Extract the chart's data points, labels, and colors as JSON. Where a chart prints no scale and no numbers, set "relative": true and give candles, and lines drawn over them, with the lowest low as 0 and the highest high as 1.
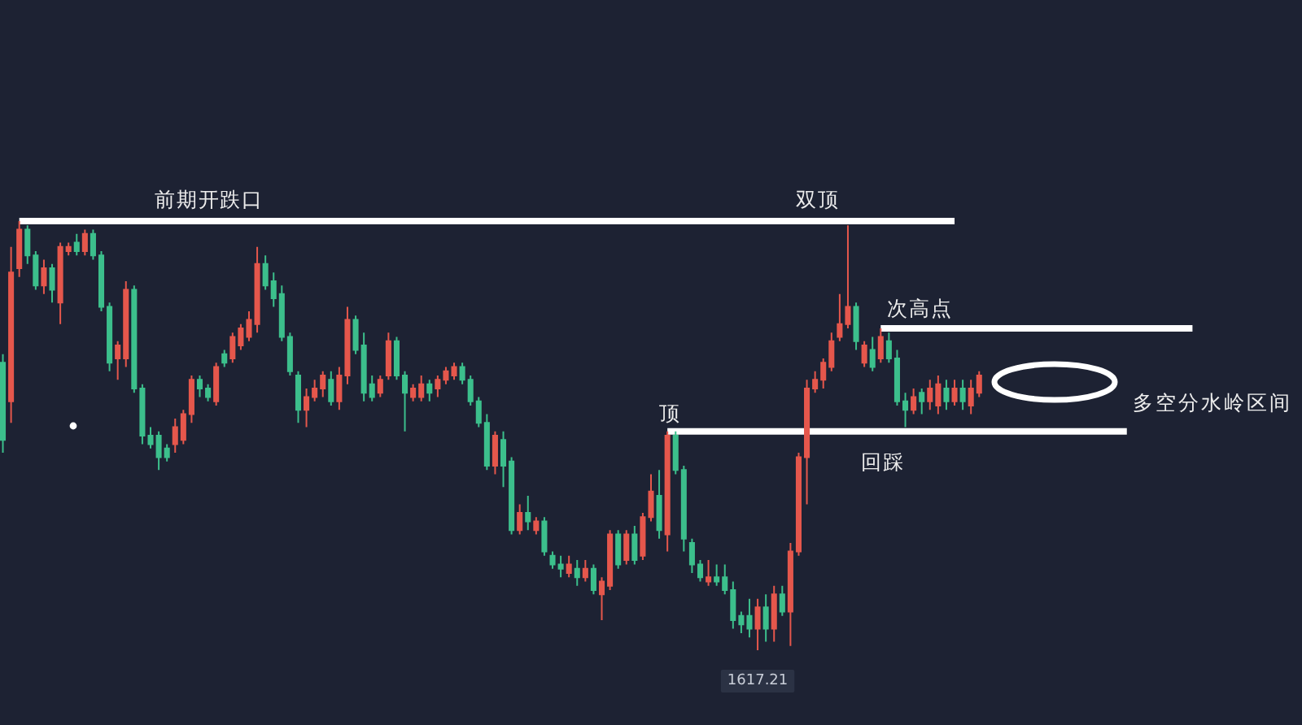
{
  "chart_data": {
    "type": "candlestick",
    "relative": true,
    "categories": [
      null,
      null,
      null,
      null,
      null,
      null,
      null,
      null,
      null,
      null,
      null,
      null,
      null,
      null,
      null,
      null,
      null,
      null,
      null,
      null,
      null,
      null,
      null,
      null,
      null,
      null,
      null,
      null,
      null,
      null,
      null,
      null,
      null,
      null,
      null,
      null,
      null,
      null,
      null,
      null,
      null,
      null,
      null,
      null,
      null,
      null,
      null,
      null,
      null,
      null,
      null,
      null,
      null,
      null,
      null,
      null,
      null,
      null,
      null,
      null,
      null,
      null,
      null,
      null,
      null,
      null,
      null,
      null,
      null,
      null,
      null,
      null,
      null,
      null,
      null,
      null,
      null,
      null,
      null,
      null,
      null,
      null,
      null,
      null,
      null,
      null,
      null,
      null,
      null,
      null,
      null,
      null,
      null,
      null,
      null,
      null,
      null,
      null,
      null,
      null,
      null,
      null,
      null,
      null,
      null,
      null,
      null,
      null,
      null,
      null,
      null,
      null,
      null,
      null,
      null,
      null,
      null,
      null,
      null,
      null,
      null,
      null,
      null,
      null,
      null,
      null,
      null,
      null,
      null,
      null,
      null,
      null,
      null,
      null,
      null,
      null,
      null,
      null,
      null,
      null,
      null,
      null,
      null,
      null,
      null,
      null,
      null,
      null,
      null,
      null,
      null,
      null,
      null,
      null,
      null,
      null,
      null,
      null,
      null
    ],
    "ohlc": [
      [
        0.67,
        0.69,
        0.46,
        0.49
      ],
      [
        0.58,
        0.94,
        0.53,
        0.88
      ],
      [
        0.89,
        1,
        0.87,
        0.98
      ],
      [
        0.98,
        0.99,
        0.9,
        0.92
      ],
      [
        0.92,
        0.93,
        0.84,
        0.85
      ],
      [
        0.85,
        0.91,
        0.83,
        0.89
      ],
      [
        0.89,
        0.9,
        0.81,
        0.84
      ],
      [
        0.81,
        0.95,
        0.76,
        0.94
      ],
      [
        0.93,
        0.95,
        0.92,
        0.94
      ],
      [
        0.95,
        0.97,
        0.92,
        0.93
      ],
      [
        0.93,
        0.98,
        0.92,
        0.97
      ],
      [
        0.97,
        0.98,
        0.91,
        0.92
      ],
      [
        0.92,
        0.93,
        0.79,
        0.8
      ],
      [
        0.8,
        0.81,
        0.65,
        0.67
      ],
      [
        0.68,
        0.72,
        0.63,
        0.71
      ],
      [
        0.68,
        0.86,
        0.66,
        0.84
      ],
      [
        0.84,
        0.85,
        0.6,
        0.61
      ],
      [
        0.61,
        0.62,
        0.48,
        0.5
      ],
      [
        0.5,
        0.52,
        0.47,
        0.48
      ],
      [
        0.5,
        0.51,
        0.42,
        0.45
      ],
      [
        0.47,
        0.48,
        0.44,
        0.45
      ],
      [
        0.48,
        0.54,
        0.46,
        0.52
      ],
      [
        0.49,
        0.56,
        0.48,
        0.55
      ],
      [
        0.55,
        0.64,
        0.53,
        0.63
      ],
      [
        0.63,
        0.64,
        0.59,
        0.61
      ],
      [
        0.61,
        0.62,
        0.58,
        0.59
      ],
      [
        0.58,
        0.67,
        0.57,
        0.66
      ],
      [
        0.69,
        0.7,
        0.66,
        0.67
      ],
      [
        0.68,
        0.74,
        0.67,
        0.73
      ],
      [
        0.71,
        0.76,
        0.7,
        0.75
      ],
      [
        0.73,
        0.79,
        0.72,
        0.77
      ],
      [
        0.76,
        0.94,
        0.74,
        0.9
      ],
      [
        0.9,
        0.92,
        0.84,
        0.85
      ],
      [
        0.86,
        0.88,
        0.8,
        0.82
      ],
      [
        0.83,
        0.85,
        0.72,
        0.73
      ],
      [
        0.73,
        0.74,
        0.64,
        0.65
      ],
      [
        0.64,
        0.65,
        0.53,
        0.56
      ],
      [
        0.56,
        0.61,
        0.52,
        0.59
      ],
      [
        0.59,
        0.63,
        0.58,
        0.61
      ],
      [
        0.61,
        0.65,
        0.59,
        0.64
      ],
      [
        0.63,
        0.65,
        0.57,
        0.58
      ],
      [
        0.58,
        0.66,
        0.56,
        0.64
      ],
      [
        0.64,
        0.8,
        0.62,
        0.77
      ],
      [
        0.77,
        0.78,
        0.69,
        0.7
      ],
      [
        0.71,
        0.74,
        0.58,
        0.6
      ],
      [
        0.62,
        0.64,
        0.58,
        0.59
      ],
      [
        0.6,
        0.64,
        0.59,
        0.63
      ],
      [
        0.64,
        0.74,
        0.63,
        0.72
      ],
      [
        0.72,
        0.73,
        0.63,
        0.64
      ],
      [
        0.64,
        0.65,
        0.51,
        0.6
      ],
      [
        0.59,
        0.62,
        0.58,
        0.61
      ],
      [
        0.59,
        0.64,
        0.58,
        0.62
      ],
      [
        0.62,
        0.63,
        0.58,
        0.6
      ],
      [
        0.61,
        0.64,
        0.59,
        0.63
      ],
      [
        0.63,
        0.66,
        0.62,
        0.65
      ],
      [
        0.64,
        0.67,
        0.63,
        0.66
      ],
      [
        0.66,
        0.67,
        0.62,
        0.63
      ],
      [
        0.63,
        0.64,
        0.57,
        0.58
      ],
      [
        0.58,
        0.59,
        0.52,
        0.53
      ],
      [
        0.53,
        0.55,
        0.42,
        0.43
      ],
      [
        0.43,
        0.51,
        0.41,
        0.5
      ],
      [
        0.49,
        0.51,
        0.38,
        0.43
      ],
      [
        0.44,
        0.45,
        0.27,
        0.28
      ],
      [
        0.28,
        0.34,
        0.27,
        0.32
      ],
      [
        0.32,
        0.36,
        0.28,
        0.3
      ],
      [
        0.28,
        0.31,
        0.27,
        0.3
      ],
      [
        0.3,
        0.31,
        0.22,
        0.23
      ],
      [
        0.22,
        0.23,
        0.19,
        0.2
      ],
      [
        0.2,
        0.22,
        0.17,
        0.19
      ],
      [
        0.18,
        0.22,
        0.17,
        0.2
      ],
      [
        0.19,
        0.21,
        0.15,
        0.17
      ],
      [
        0.17,
        0.21,
        0.16,
        0.19
      ],
      [
        0.19,
        0.2,
        0.13,
        0.14
      ],
      [
        0.13,
        0.17,
        0.07,
        0.16
      ],
      [
        0.15,
        0.28,
        0.14,
        0.27
      ],
      [
        0.27,
        0.28,
        0.19,
        0.2
      ],
      [
        0.21,
        0.28,
        0.2,
        0.27
      ],
      [
        0.27,
        0.29,
        0.2,
        0.21
      ],
      [
        0.22,
        0.32,
        0.21,
        0.31
      ],
      [
        0.31,
        0.41,
        0.3,
        0.37
      ],
      [
        0.36,
        0.42,
        0.26,
        0.28
      ],
      [
        0.27,
        0.51,
        0.23,
        0.5
      ],
      [
        0.5,
        0.51,
        0.41,
        0.42
      ],
      [
        0.42,
        0.43,
        0.23,
        0.26
      ],
      [
        0.25,
        0.26,
        0.18,
        0.2
      ],
      [
        0.2,
        0.21,
        0.16,
        0.17
      ],
      [
        0.16,
        0.21,
        0.15,
        0.17
      ],
      [
        0.17,
        0.2,
        0.15,
        0.16
      ],
      [
        0.17,
        0.2,
        0.13,
        0.14
      ],
      [
        0.14,
        0.16,
        0.05,
        0.07
      ],
      [
        0.08,
        0.09,
        0.04,
        0.06
      ],
      [
        0.08,
        0.12,
        0.03,
        0.05
      ],
      [
        0.05,
        0.12,
        0,
        0.1
      ],
      [
        0.1,
        0.13,
        0.02,
        0.05
      ],
      [
        0.05,
        0.15,
        0.02,
        0.13
      ],
      [
        0.13,
        0.15,
        0.08,
        0.09
      ],
      [
        0.09,
        0.25,
        0.01,
        0.23
      ],
      [
        0.23,
        0.46,
        0.22,
        0.45
      ],
      [
        0.45,
        0.63,
        0.34,
        0.61
      ],
      [
        0.61,
        0.65,
        0.6,
        0.63
      ],
      [
        0.63,
        0.68,
        0.61,
        0.67
      ],
      [
        0.66,
        0.74,
        0.65,
        0.72
      ],
      [
        0.73,
        0.83,
        0.72,
        0.76
      ],
      [
        0.76,
        0.99,
        0.75,
        0.8
      ],
      [
        0.8,
        0.81,
        0.7,
        0.72
      ],
      [
        0.67,
        0.72,
        0.66,
        0.71
      ],
      [
        0.7,
        0.73,
        0.65,
        0.66
      ],
      [
        0.68,
        0.75,
        0.67,
        0.73
      ],
      [
        0.72,
        0.74,
        0.67,
        0.68
      ],
      [
        0.68,
        0.7,
        0.57,
        0.58
      ],
      [
        0.58,
        0.6,
        0.52,
        0.56
      ],
      [
        0.56,
        0.61,
        0.55,
        0.59
      ],
      [
        0.6,
        0.61,
        0.55,
        0.58
      ],
      [
        0.58,
        0.63,
        0.56,
        0.61
      ],
      [
        0.57,
        0.64,
        0.55,
        0.62
      ],
      [
        0.61,
        0.63,
        0.56,
        0.58
      ],
      [
        0.58,
        0.63,
        0.57,
        0.61
      ],
      [
        0.61,
        0.63,
        0.56,
        0.58
      ],
      [
        0.57,
        0.63,
        0.55,
        0.61
      ],
      [
        0.6,
        0.65,
        0.59,
        0.64
      ],
      null,
      null,
      null,
      null,
      null,
      null,
      null,
      null,
      null,
      null,
      null,
      null,
      null,
      null,
      null,
      null,
      null,
      null,
      null,
      null,
      null,
      null,
      null,
      null,
      null,
      null,
      null,
      null,
      null,
      null,
      null,
      null,
      null,
      null,
      null,
      null,
      null,
      null,
      null
    ],
    "colors": [
      "#3cbf8c",
      "#e5574c",
      "#e5574c",
      "#3cbf8c",
      "#3cbf8c",
      "#e5574c",
      "#3cbf8c",
      "#e5574c",
      "#e5574c",
      "#3cbf8c",
      "#e5574c",
      "#3cbf8c",
      "#3cbf8c",
      "#3cbf8c",
      "#e5574c",
      "#e5574c",
      "#3cbf8c",
      "#3cbf8c",
      "#3cbf8c",
      "#3cbf8c",
      "#3cbf8c",
      "#e5574c",
      "#e5574c",
      "#e5574c",
      "#3cbf8c",
      "#3cbf8c",
      "#e5574c",
      "#3cbf8c",
      "#e5574c",
      "#e5574c",
      "#e5574c",
      "#e5574c",
      "#3cbf8c",
      "#3cbf8c",
      "#3cbf8c",
      "#3cbf8c",
      "#3cbf8c",
      "#e5574c",
      "#e5574c",
      "#e5574c",
      "#3cbf8c",
      "#e5574c",
      "#e5574c",
      "#3cbf8c",
      "#3cbf8c",
      "#3cbf8c",
      "#e5574c",
      "#e5574c",
      "#3cbf8c",
      "#3cbf8c",
      "#e5574c",
      "#e5574c",
      "#3cbf8c",
      "#e5574c",
      "#e5574c",
      "#e5574c",
      "#3cbf8c",
      "#3cbf8c",
      "#3cbf8c",
      "#3cbf8c",
      "#e5574c",
      "#3cbf8c",
      "#3cbf8c",
      "#e5574c",
      "#3cbf8c",
      "#e5574c",
      "#3cbf8c",
      "#3cbf8c",
      "#3cbf8c",
      "#e5574c",
      "#3cbf8c",
      "#e5574c",
      "#3cbf8c",
      "#e5574c",
      "#e5574c",
      "#3cbf8c",
      "#e5574c",
      "#3cbf8c",
      "#e5574c",
      "#e5574c",
      "#3cbf8c",
      "#e5574c",
      "#3cbf8c",
      "#3cbf8c",
      "#3cbf8c",
      "#3cbf8c",
      "#e5574c",
      "#3cbf8c",
      "#3cbf8c",
      "#3cbf8c",
      "#3cbf8c",
      "#3cbf8c",
      "#e5574c",
      "#3cbf8c",
      "#e5574c",
      "#3cbf8c",
      "#e5574c",
      "#e5574c",
      "#e5574c",
      "#e5574c",
      "#e5574c",
      "#e5574c",
      "#e5574c",
      "#e5574c",
      "#3cbf8c",
      "#e5574c",
      "#3cbf8c",
      "#e5574c",
      "#3cbf8c",
      "#3cbf8c",
      "#3cbf8c",
      "#e5574c",
      "#3cbf8c",
      "#e5574c",
      "#e5574c",
      "#3cbf8c",
      "#e5574c",
      "#3cbf8c",
      "#e5574c",
      "#e5574c",
      null,
      null,
      null,
      null,
      null,
      null,
      null,
      null,
      null,
      null,
      null,
      null,
      null,
      null,
      null,
      null,
      null,
      null,
      null,
      null,
      null,
      null,
      null,
      null,
      null,
      null,
      null,
      null,
      null,
      null,
      null,
      null,
      null,
      null,
      null,
      null,
      null,
      null,
      null
    ],
    "series": [
      {
        "type": "line",
        "color": "#ffffff",
        "values": [
          null,
          null,
          1,
          1,
          1,
          1,
          1,
          1,
          1,
          1,
          1,
          1,
          1,
          1,
          1,
          1,
          1,
          1,
          1,
          1,
          1,
          1,
          1,
          1,
          1,
          1,
          1,
          1,
          1,
          1,
          1,
          1,
          1,
          1,
          1,
          1,
          1,
          1,
          1,
          1,
          1,
          1,
          1,
          1,
          1,
          1,
          1,
          1,
          1,
          1,
          1,
          1,
          1,
          1,
          1,
          1,
          1,
          1,
          1,
          1,
          1,
          1,
          1,
          1,
          1,
          1,
          1,
          1,
          1,
          1,
          1,
          1,
          1,
          1,
          1,
          1,
          1,
          1,
          1,
          1,
          1,
          1,
          1,
          1,
          1,
          1,
          1,
          1,
          1,
          1,
          1,
          1,
          1,
          1,
          1,
          1,
          1,
          1,
          1,
          1,
          1,
          1,
          1,
          1,
          1,
          1,
          1,
          1,
          1,
          1,
          1,
          1,
          1,
          1,
          1,
          1,
          1,
          null,
          null,
          null,
          null,
          null,
          null,
          null,
          null,
          null,
          null,
          null,
          null,
          null,
          null,
          null,
          null,
          null,
          null,
          null,
          null,
          null,
          null,
          null,
          null,
          null,
          null,
          null,
          null,
          null,
          null,
          null,
          null,
          null,
          null,
          null,
          null,
          null,
          null,
          null,
          null,
          null,
          null
        ]
      },
      {
        "type": "line",
        "color": "#ffffff",
        "values": [
          null,
          null,
          null,
          null,
          null,
          null,
          null,
          null,
          null,
          null,
          null,
          null,
          null,
          null,
          null,
          null,
          null,
          null,
          null,
          null,
          null,
          null,
          null,
          null,
          null,
          null,
          null,
          null,
          null,
          null,
          null,
          null,
          null,
          null,
          null,
          null,
          null,
          null,
          null,
          null,
          null,
          null,
          null,
          null,
          null,
          null,
          null,
          null,
          null,
          null,
          null,
          null,
          null,
          null,
          null,
          null,
          null,
          null,
          null,
          null,
          null,
          null,
          null,
          null,
          null,
          null,
          null,
          null,
          null,
          null,
          null,
          null,
          null,
          null,
          null,
          null,
          null,
          null,
          null,
          null,
          null,
          null,
          null,
          null,
          null,
          null,
          null,
          null,
          null,
          null,
          null,
          null,
          null,
          null,
          null,
          null,
          null,
          null,
          null,
          null,
          null,
          null,
          null,
          null,
          null,
          null,
          null,
          0.75,
          0.75,
          0.75,
          0.75,
          0.75,
          0.75,
          0.75,
          0.75,
          0.75,
          0.75,
          0.75,
          0.75,
          0.75,
          0.75,
          0.75,
          0.75,
          0.75,
          0.75,
          0.75,
          0.75,
          0.75,
          0.75,
          0.75,
          0.75,
          0.75,
          0.75,
          0.75,
          0.75,
          0.75,
          0.75,
          0.75,
          0.75,
          0.75,
          0.75,
          0.75,
          0.75,
          0.75,
          0.75,
          0.75,
          null,
          null,
          null,
          null,
          null,
          null,
          null,
          null,
          null,
          null,
          null,
          null,
          null
        ]
      },
      {
        "type": "line",
        "color": "#ffffff",
        "values": [
          null,
          null,
          null,
          null,
          null,
          null,
          null,
          null,
          null,
          null,
          null,
          null,
          null,
          null,
          null,
          null,
          null,
          null,
          null,
          null,
          null,
          null,
          null,
          null,
          null,
          null,
          null,
          null,
          null,
          null,
          null,
          null,
          null,
          null,
          null,
          null,
          null,
          null,
          null,
          null,
          null,
          null,
          null,
          null,
          null,
          null,
          null,
          null,
          null,
          null,
          null,
          null,
          null,
          null,
          null,
          null,
          null,
          null,
          null,
          null,
          null,
          null,
          null,
          null,
          null,
          null,
          null,
          null,
          null,
          null,
          null,
          null,
          null,
          null,
          null,
          null,
          null,
          null,
          null,
          null,
          null,
          0.51,
          0.51,
          0.51,
          0.51,
          0.51,
          0.51,
          0.51,
          0.51,
          0.51,
          0.51,
          0.51,
          0.51,
          0.51,
          0.51,
          0.51,
          0.51,
          0.51,
          0.51,
          0.51,
          0.51,
          0.51,
          0.51,
          0.51,
          0.51,
          0.51,
          0.51,
          0.51,
          0.51,
          0.51,
          0.51,
          0.51,
          0.51,
          0.51,
          0.51,
          0.51,
          0.51,
          0.51,
          0.51,
          0.51,
          0.51,
          0.51,
          0.51,
          0.51,
          0.51,
          0.51,
          0.51,
          0.51,
          0.51,
          0.51,
          0.51,
          0.51,
          0.51,
          0.51,
          0.51,
          0.51,
          0.51,
          0.51,
          null,
          null,
          null,
          null,
          null,
          null,
          null,
          null,
          null,
          null,
          null,
          null,
          null,
          null,
          null,
          null,
          null,
          null,
          null,
          null,
          null
        ]
      }
    ],
    "annotations": [
      {
        "text": "前期开跌口",
        "y": 1
      },
      {
        "text": "双顶",
        "y": 1
      },
      {
        "text": "次高点",
        "y": 0.75
      },
      {
        "text": "顶",
        "y": 0.51
      },
      "多空分水岭区间",
      {
        "text": "回踩",
        "y": 0.51
      },
      {
        "text": "1617.21",
        "y": 0
      }
    ]
  }
}
